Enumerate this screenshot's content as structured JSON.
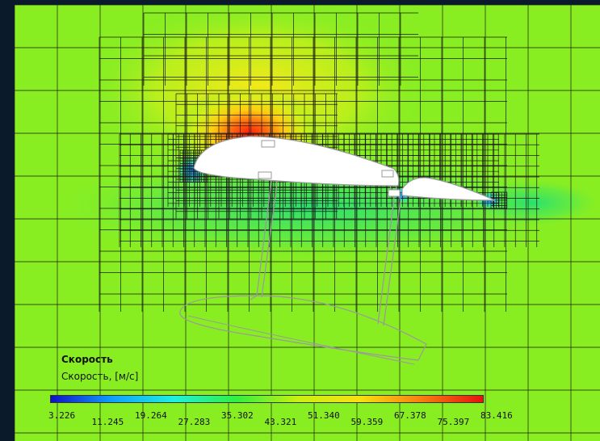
{
  "legend": {
    "title": "Скорость",
    "subtitle": "Скорость, [м/с]",
    "colors": [
      "#1010c8",
      "#10a0ff",
      "#20f0e0",
      "#30f040",
      "#c8f010",
      "#f8e010",
      "#f88010",
      "#e81010"
    ],
    "ticks": [
      "3.226",
      "11.245",
      "19.264",
      "27.283",
      "35.302",
      "43.321",
      "51.340",
      "59.359",
      "67.378",
      "75.397",
      "83.416"
    ]
  },
  "field": {
    "background_color": "#88ee22",
    "high_velocity_color": "#ff2010",
    "low_velocity_color": "#20c8ff",
    "mesh_color": "#1a1a1a",
    "body_color": "#ffffff",
    "body_outline_color": "#999999"
  }
}
